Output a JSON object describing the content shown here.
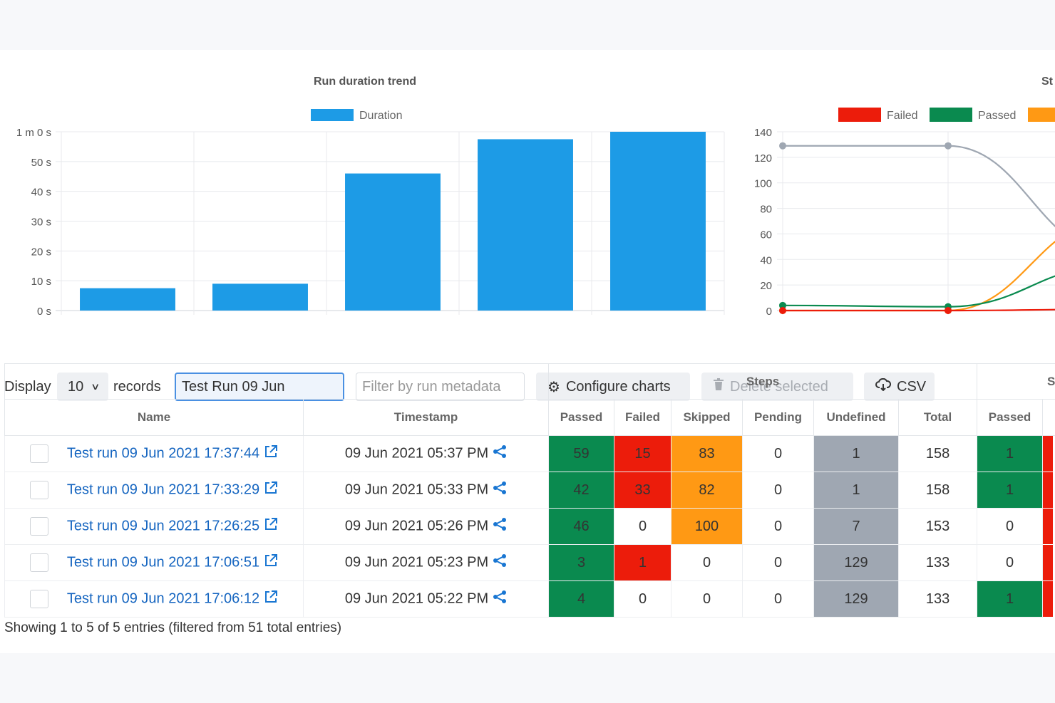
{
  "charts": {
    "duration": {
      "title": "Run duration trend",
      "legend": "Duration",
      "color": "#1d9be6",
      "y_ticks": [
        "1 m 0 s",
        "50 s",
        "40 s",
        "30 s",
        "20 s",
        "10 s",
        "0 s"
      ]
    },
    "steps": {
      "title_partial": "St",
      "y_ticks": [
        "140",
        "120",
        "100",
        "80",
        "60",
        "40",
        "20",
        "0"
      ],
      "legend": [
        {
          "label": "Failed",
          "color": "#ec1c0b"
        },
        {
          "label": "Passed",
          "color": "#0a8a4f"
        },
        {
          "label": "",
          "color": "#ff9914"
        }
      ]
    }
  },
  "chart_data": [
    {
      "type": "bar",
      "title": "Run duration trend",
      "series": [
        {
          "name": "Duration",
          "values": [
            7.5,
            9,
            46,
            57.5,
            60
          ]
        }
      ],
      "ylim": [
        0,
        60
      ],
      "yunit": "seconds",
      "grid": true,
      "legend_position": "top"
    },
    {
      "type": "line",
      "title": "St",
      "ylim": [
        0,
        140
      ],
      "partially_visible": true,
      "series": [
        {
          "name": "Failed",
          "color": "#ec1c0b",
          "values": [
            0,
            0,
            1
          ]
        },
        {
          "name": "Passed",
          "color": "#0a8a4f",
          "values": [
            4,
            3,
            35
          ]
        },
        {
          "name": "",
          "color": "#ff9914",
          "values": [
            0,
            0,
            72
          ]
        },
        {
          "name": "",
          "color": "#9fa7b2",
          "values": [
            129,
            129,
            45
          ]
        }
      ],
      "legend_position": "top"
    }
  ],
  "toolbar": {
    "display_label": "Display",
    "page_size": "10",
    "records_label": "records",
    "search_value": "Test Run 09 Jun",
    "filter_placeholder": "Filter by run metadata",
    "configure_label": "Configure charts",
    "delete_label": "Delete selected",
    "csv_label": "CSV"
  },
  "table": {
    "group_steps": "Steps",
    "group_next": "S",
    "headers": {
      "name": "Name",
      "timestamp": "Timestamp",
      "passed": "Passed",
      "failed": "Failed",
      "skipped": "Skipped",
      "pending": "Pending",
      "undefined": "Undefined",
      "total": "Total",
      "passed2": "Passed"
    },
    "rows": [
      {
        "name": "Test run 09 Jun 2021 17:37:44",
        "timestamp": "09 Jun 2021 05:37 PM",
        "passed": "59",
        "failed": "15",
        "skipped": "83",
        "pending": "0",
        "undefined": "1",
        "total": "158",
        "passed2": "1",
        "next_color": "#ec1c0b"
      },
      {
        "name": "Test run 09 Jun 2021 17:33:29",
        "timestamp": "09 Jun 2021 05:33 PM",
        "passed": "42",
        "failed": "33",
        "skipped": "82",
        "pending": "0",
        "undefined": "1",
        "total": "158",
        "passed2": "1",
        "next_color": "#ec1c0b"
      },
      {
        "name": "Test run 09 Jun 2021 17:26:25",
        "timestamp": "09 Jun 2021 05:26 PM",
        "passed": "46",
        "failed": "0",
        "skipped": "100",
        "pending": "0",
        "undefined": "7",
        "total": "153",
        "passed2": "0",
        "next_color": "#ec1c0b"
      },
      {
        "name": "Test run 09 Jun 2021 17:06:51",
        "timestamp": "09 Jun 2021 05:23 PM",
        "passed": "3",
        "failed": "1",
        "skipped": "0",
        "pending": "0",
        "undefined": "129",
        "total": "133",
        "passed2": "0",
        "next_color": "#ec1c0b"
      },
      {
        "name": "Test run 09 Jun 2021 17:06:12",
        "timestamp": "09 Jun 2021 05:22 PM",
        "passed": "4",
        "failed": "0",
        "skipped": "0",
        "pending": "0",
        "undefined": "129",
        "total": "133",
        "passed2": "1",
        "next_color": "#ec1c0b"
      }
    ]
  },
  "footer": "Showing 1 to 5 of 5 entries (filtered from 51 total entries)"
}
